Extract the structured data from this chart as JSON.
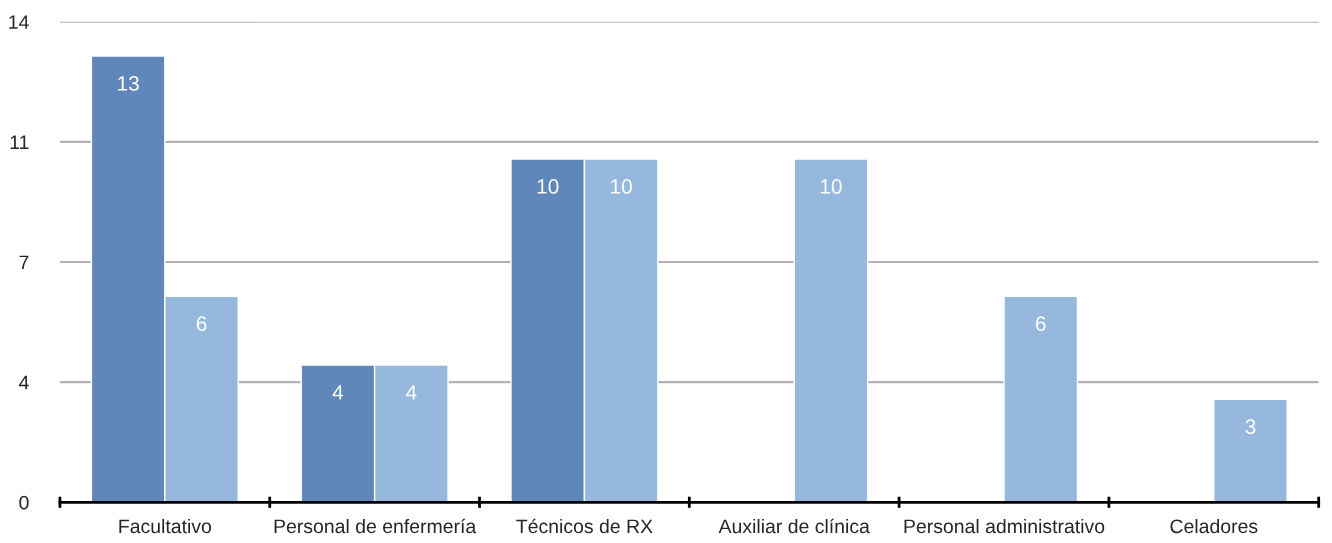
{
  "chart_data": {
    "type": "bar",
    "categories": [
      "Facultativo",
      "Personal de enfermería",
      "Técnicos de RX",
      "Auxiliar de clínica",
      "Personal administrativo",
      "Celadores"
    ],
    "series": [
      {
        "color": "#5f87b9",
        "values": [
          13,
          4,
          10,
          null,
          null,
          null
        ]
      },
      {
        "color": "#96b8dc",
        "values": [
          6,
          4,
          10,
          10,
          6,
          3
        ]
      }
    ],
    "ylim": [
      0,
      14
    ],
    "yticks": [
      0,
      {
        "value": 3.5,
        "label": "4"
      },
      7,
      {
        "value": 10.5,
        "label": "11"
      },
      14
    ],
    "grid": "y",
    "data_labels": true
  }
}
